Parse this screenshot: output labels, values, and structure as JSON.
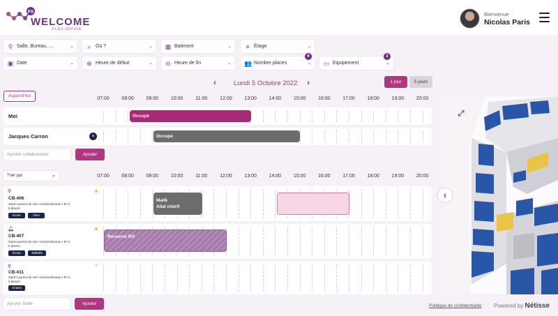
{
  "header": {
    "logo_text": "WELCOME",
    "logo_sub": "FLEX OFFICE",
    "logo_badge": "F0",
    "greeting": "Bienvenue",
    "user_name": "Nicolas Paris"
  },
  "filters": {
    "room_search": "Salle, Bureau, ...",
    "where": "Où ?",
    "building": "Batiment",
    "floor": "Étage",
    "date": "Date",
    "start_time": "Heure de début",
    "end_time": "Heure de fin",
    "seats": "Nombre places",
    "seats_badge": "6",
    "equipment": "Equipement",
    "equipment_badge": "2"
  },
  "nav": {
    "today": "Aujourd'hui",
    "date_title": "Lundi 5 Octobre 2022",
    "view_day": "1 jour",
    "view_week": "5 jours"
  },
  "hours": [
    "07:00",
    "08:00",
    "09:00",
    "10:00",
    "11:00",
    "12:00",
    "13:00",
    "14:00",
    "15:00",
    "16:00",
    "17:00",
    "18:00",
    "19:00",
    "20:00"
  ],
  "collaborators": [
    {
      "name": "Moi",
      "event": "Occupé",
      "color": "#a72a74"
    },
    {
      "name": "Jacques Carron",
      "event": "Occupé",
      "color": "#6c6c6c"
    }
  ],
  "add_collaborator": {
    "placeholder": "Ajouter collaborateur",
    "button": "Ajouter"
  },
  "sort": {
    "label": "Trier par"
  },
  "rooms": [
    {
      "name": "CB-406",
      "location": "Saint-Laurent du Var • Central Bureau • R+4",
      "capacity": "6 places",
      "tags": [
        "Écran",
        "Visio"
      ],
      "favorite": true,
      "event1_line1": "Malik",
      "event1_line2": "Allal chérif"
    },
    {
      "name": "CB-407",
      "location": "Saint-Laurent du Var • Central Bureau • R+4",
      "capacity": "6 places",
      "tags": [
        "Écran",
        "Tablette"
      ],
      "favorite": true,
      "event1": "Rerservé RH"
    },
    {
      "name": "CB-411",
      "location": "Saint-Laurent du Var • Central Bureau • R+4",
      "capacity": "6 places",
      "tags": [
        "Chaise"
      ],
      "favorite": false
    }
  ],
  "add_room": {
    "placeholder": "Ajouter Salle",
    "button": "Ajouter"
  },
  "footer": {
    "privacy": "Politique de confidentialité",
    "powered_by": "Powered by",
    "brand": "Nétisse"
  },
  "colors": {
    "accent": "#b1367f",
    "purple": "#6a2c8e",
    "navy": "#1c2547"
  }
}
